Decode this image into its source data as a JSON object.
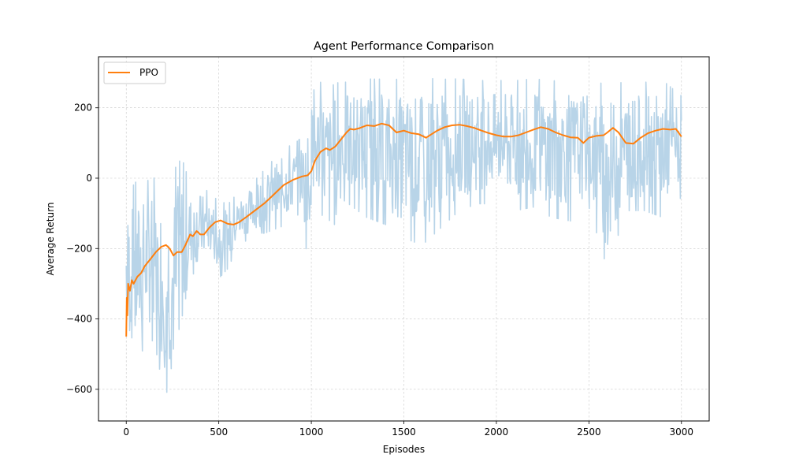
{
  "chart_data": {
    "type": "line",
    "title": "Agent Performance Comparison",
    "xlabel": "Episodes",
    "ylabel": "Average Return",
    "xlim": [
      -150,
      3150
    ],
    "ylim": [
      -690,
      345
    ],
    "xticks": [
      0,
      500,
      1000,
      1500,
      2000,
      2500,
      3000
    ],
    "yticks": [
      -600,
      -400,
      -200,
      0,
      200
    ],
    "grid": true,
    "legend_position": "top-left",
    "series": [
      {
        "name": "",
        "role": "raw",
        "color": "#b8d4e8",
        "band": {
          "x": [
            0,
            50,
            100,
            150,
            200,
            250,
            300,
            350,
            400,
            450,
            500,
            550,
            600,
            650,
            700,
            750,
            800,
            850,
            900,
            950,
            980,
            1000,
            1050,
            1100,
            1150,
            1200,
            1300,
            1400,
            1500,
            1600,
            1700,
            1800,
            1900,
            2000,
            2100,
            2200,
            2300,
            2400,
            2500,
            2600,
            2700,
            2800,
            2900,
            3000
          ],
          "low": [
            -500,
            -560,
            -480,
            -470,
            -610,
            -640,
            -490,
            -280,
            -270,
            -230,
            -290,
            -260,
            -200,
            -180,
            -160,
            -160,
            -150,
            -140,
            -120,
            -100,
            -310,
            -110,
            -90,
            -220,
            -60,
            -80,
            -120,
            -140,
            -180,
            -200,
            -150,
            -100,
            -80,
            -80,
            -100,
            -90,
            -120,
            -130,
            -90,
            -270,
            -100,
            -100,
            -120,
            -60
          ],
          "high": [
            -40,
            0,
            0,
            10,
            20,
            30,
            70,
            -20,
            -10,
            -40,
            -60,
            -70,
            -40,
            -20,
            0,
            30,
            60,
            90,
            100,
            120,
            210,
            250,
            280,
            270,
            280,
            280,
            290,
            290,
            290,
            295,
            290,
            290,
            285,
            285,
            285,
            290,
            285,
            285,
            280,
            280,
            280,
            280,
            285,
            240
          ]
        }
      },
      {
        "name": "PPO",
        "role": "smoothed",
        "color": "#ff7f0e",
        "x": [
          0,
          3,
          6,
          10,
          20,
          30,
          40,
          60,
          80,
          100,
          130,
          160,
          190,
          215,
          235,
          255,
          275,
          300,
          320,
          345,
          360,
          380,
          400,
          420,
          450,
          480,
          510,
          530,
          550,
          580,
          610,
          650,
          700,
          750,
          800,
          850,
          900,
          950,
          980,
          1000,
          1020,
          1050,
          1080,
          1100,
          1130,
          1160,
          1190,
          1210,
          1230,
          1260,
          1300,
          1340,
          1380,
          1420,
          1460,
          1500,
          1540,
          1580,
          1620,
          1650,
          1680,
          1720,
          1760,
          1800,
          1840,
          1880,
          1920,
          1960,
          2000,
          2040,
          2080,
          2120,
          2160,
          2200,
          2240,
          2280,
          2320,
          2360,
          2400,
          2440,
          2470,
          2500,
          2540,
          2580,
          2600,
          2630,
          2660,
          2700,
          2740,
          2780,
          2820,
          2860,
          2900,
          2940,
          2970,
          3000
        ],
        "y": [
          -450,
          -340,
          -390,
          -300,
          -320,
          -290,
          -300,
          -280,
          -270,
          -250,
          -230,
          -210,
          -195,
          -190,
          -200,
          -220,
          -210,
          -210,
          -190,
          -160,
          -165,
          -150,
          -160,
          -160,
          -140,
          -125,
          -120,
          -125,
          -130,
          -132,
          -125,
          -110,
          -90,
          -70,
          -45,
          -20,
          -5,
          5,
          8,
          20,
          50,
          75,
          85,
          80,
          90,
          110,
          130,
          140,
          138,
          142,
          150,
          148,
          155,
          150,
          130,
          135,
          128,
          125,
          115,
          125,
          135,
          145,
          150,
          152,
          148,
          143,
          135,
          128,
          122,
          118,
          118,
          122,
          130,
          138,
          145,
          140,
          130,
          122,
          116,
          115,
          100,
          115,
          120,
          122,
          130,
          143,
          130,
          100,
          98,
          115,
          128,
          135,
          140,
          138,
          140,
          118
        ]
      }
    ]
  }
}
